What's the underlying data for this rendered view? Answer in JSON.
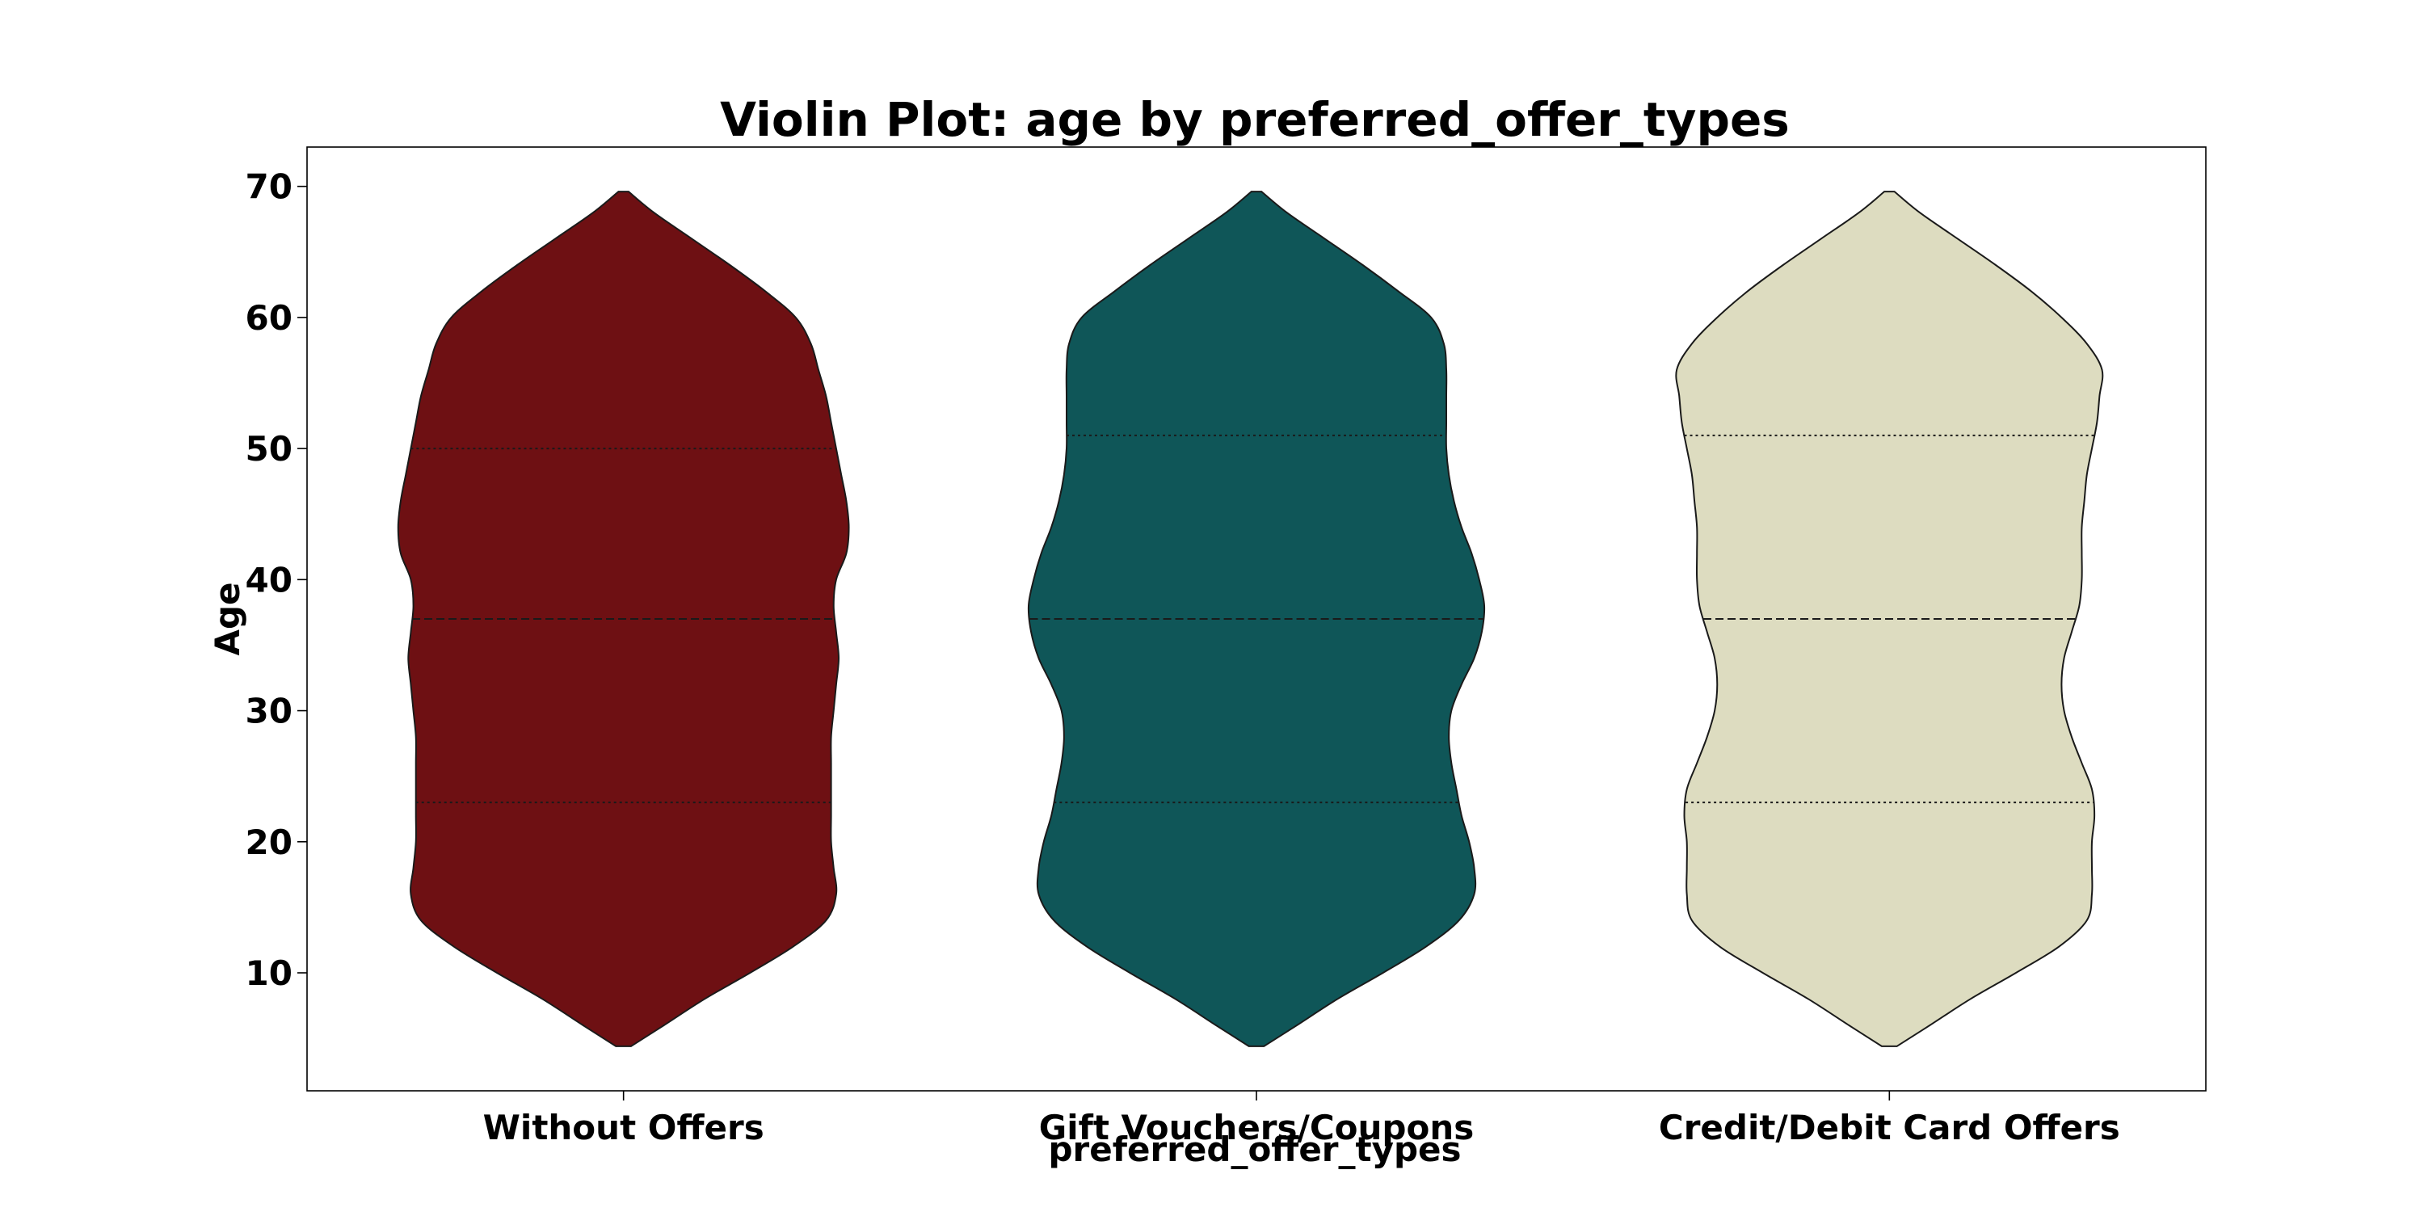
{
  "chart_data": {
    "type": "violin",
    "title": "Violin Plot: age by preferred_offer_types",
    "xlabel": "preferred_offer_types",
    "ylabel": "Age",
    "ylim": [
      1,
      73
    ],
    "yticks": [
      "10",
      "20",
      "30",
      "40",
      "50",
      "60",
      "70"
    ],
    "categories": [
      "Without Offers",
      "Gift Vouchers/Coupons",
      "Credit/Debit Card Offers"
    ],
    "colors": [
      "#6e1013",
      "#0f5658",
      "#dddcc0"
    ],
    "grid": false,
    "legend": false,
    "violins": [
      {
        "category": "Without Offers",
        "min": 4.4,
        "max": 69.6,
        "quartiles": [
          23,
          37,
          50
        ],
        "density": [
          [
            4.4,
            0.03
          ],
          [
            6,
            0.16
          ],
          [
            8,
            0.32
          ],
          [
            10,
            0.5
          ],
          [
            12,
            0.67
          ],
          [
            14,
            0.8
          ],
          [
            16,
            0.84
          ],
          [
            18,
            0.83
          ],
          [
            20,
            0.82
          ],
          [
            22,
            0.82
          ],
          [
            24,
            0.82
          ],
          [
            26,
            0.82
          ],
          [
            28,
            0.82
          ],
          [
            30,
            0.83
          ],
          [
            32,
            0.84
          ],
          [
            34,
            0.85
          ],
          [
            36,
            0.84
          ],
          [
            38,
            0.83
          ],
          [
            40,
            0.84
          ],
          [
            42,
            0.88
          ],
          [
            44,
            0.89
          ],
          [
            46,
            0.88
          ],
          [
            48,
            0.86
          ],
          [
            50,
            0.84
          ],
          [
            52,
            0.82
          ],
          [
            54,
            0.8
          ],
          [
            56,
            0.77
          ],
          [
            58,
            0.74
          ],
          [
            60,
            0.68
          ],
          [
            62,
            0.56
          ],
          [
            64,
            0.42
          ],
          [
            66,
            0.27
          ],
          [
            68,
            0.12
          ],
          [
            69.6,
            0.02
          ]
        ]
      },
      {
        "category": "Gift Vouchers/Coupons",
        "min": 4.4,
        "max": 69.6,
        "quartiles": [
          23,
          37,
          51
        ],
        "density": [
          [
            4.4,
            0.03
          ],
          [
            6,
            0.16
          ],
          [
            8,
            0.32
          ],
          [
            10,
            0.5
          ],
          [
            12,
            0.67
          ],
          [
            14,
            0.8
          ],
          [
            16,
            0.86
          ],
          [
            18,
            0.86
          ],
          [
            20,
            0.84
          ],
          [
            22,
            0.81
          ],
          [
            24,
            0.79
          ],
          [
            26,
            0.77
          ],
          [
            28,
            0.76
          ],
          [
            30,
            0.77
          ],
          [
            32,
            0.81
          ],
          [
            34,
            0.86
          ],
          [
            36,
            0.89
          ],
          [
            38,
            0.9
          ],
          [
            40,
            0.88
          ],
          [
            42,
            0.85
          ],
          [
            44,
            0.81
          ],
          [
            46,
            0.78
          ],
          [
            48,
            0.76
          ],
          [
            50,
            0.75
          ],
          [
            52,
            0.75
          ],
          [
            54,
            0.75
          ],
          [
            56,
            0.75
          ],
          [
            58,
            0.74
          ],
          [
            60,
            0.69
          ],
          [
            62,
            0.56
          ],
          [
            64,
            0.42
          ],
          [
            66,
            0.27
          ],
          [
            68,
            0.12
          ],
          [
            69.6,
            0.02
          ]
        ]
      },
      {
        "category": "Credit/Debit Card Offers",
        "min": 4.4,
        "max": 69.6,
        "quartiles": [
          23,
          37,
          51
        ],
        "density": [
          [
            4.4,
            0.03
          ],
          [
            6,
            0.16
          ],
          [
            8,
            0.32
          ],
          [
            10,
            0.5
          ],
          [
            12,
            0.67
          ],
          [
            14,
            0.78
          ],
          [
            16,
            0.8
          ],
          [
            18,
            0.8
          ],
          [
            20,
            0.8
          ],
          [
            22,
            0.81
          ],
          [
            24,
            0.8
          ],
          [
            26,
            0.76
          ],
          [
            28,
            0.72
          ],
          [
            30,
            0.69
          ],
          [
            32,
            0.68
          ],
          [
            34,
            0.69
          ],
          [
            36,
            0.72
          ],
          [
            38,
            0.75
          ],
          [
            40,
            0.76
          ],
          [
            42,
            0.76
          ],
          [
            44,
            0.76
          ],
          [
            46,
            0.77
          ],
          [
            48,
            0.78
          ],
          [
            50,
            0.8
          ],
          [
            52,
            0.82
          ],
          [
            54,
            0.83
          ],
          [
            56,
            0.84
          ],
          [
            58,
            0.78
          ],
          [
            60,
            0.68
          ],
          [
            62,
            0.56
          ],
          [
            64,
            0.42
          ],
          [
            66,
            0.27
          ],
          [
            68,
            0.12
          ],
          [
            69.6,
            0.02
          ]
        ]
      }
    ]
  }
}
